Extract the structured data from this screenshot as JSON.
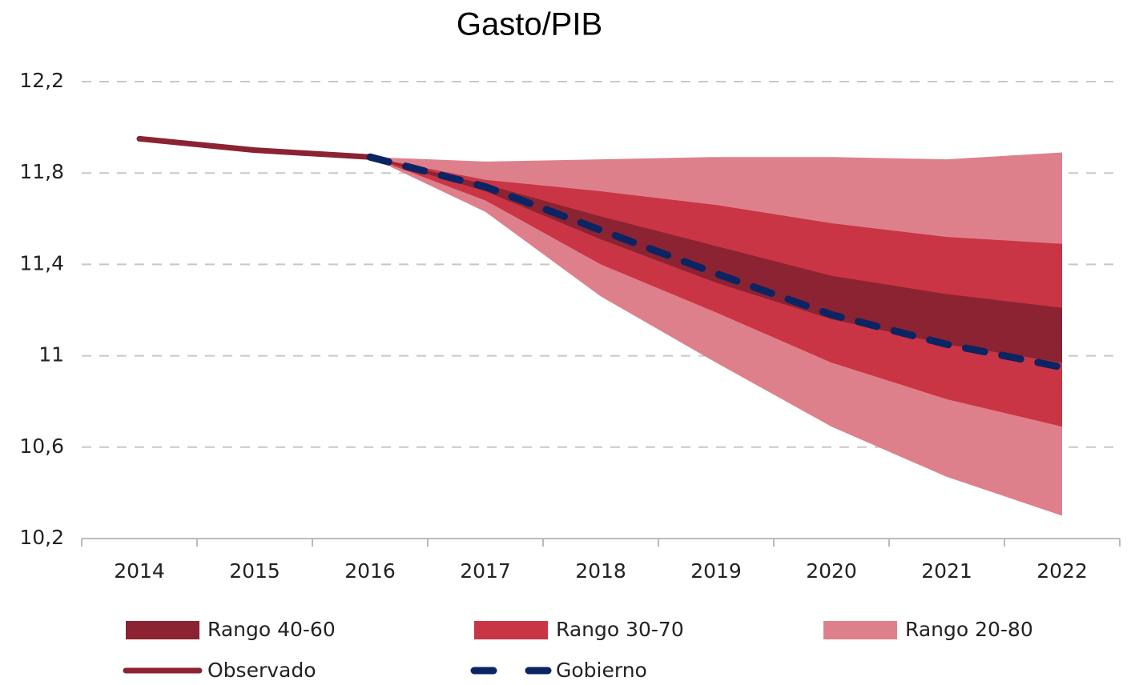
{
  "chart_data": {
    "type": "fan",
    "title": "Gasto/PIB",
    "categories": [
      "2014",
      "2015",
      "2016",
      "2017",
      "2018",
      "2019",
      "2020",
      "2021",
      "2022"
    ],
    "ylim": [
      10.2,
      12.2
    ],
    "yticks": [
      {
        "value": 10.2,
        "label": "10,2"
      },
      {
        "value": 10.6,
        "label": "10,6"
      },
      11,
      {
        "value": 11.4,
        "label": "11,4"
      },
      {
        "value": 11.8,
        "label": "11,8"
      },
      {
        "value": 12.2,
        "label": "12,2"
      }
    ],
    "grid": true,
    "bands": [
      {
        "name": "Rango 40-60",
        "color": "#8b2332",
        "low": [
          null,
          null,
          11.87,
          11.72,
          11.51,
          11.32,
          11.16,
          11.05,
          10.97
        ],
        "high": [
          null,
          null,
          11.87,
          11.75,
          11.61,
          11.48,
          11.35,
          11.27,
          11.21
        ]
      },
      {
        "name": "Rango 30-70",
        "color": "#c93545",
        "low": [
          null,
          null,
          11.87,
          11.68,
          11.4,
          11.19,
          10.97,
          10.81,
          10.69
        ],
        "high": [
          null,
          null,
          11.87,
          11.77,
          11.72,
          11.66,
          11.58,
          11.52,
          11.49
        ]
      },
      {
        "name": "Rango 20-80",
        "color": "#de808b",
        "low": [
          null,
          null,
          11.87,
          11.63,
          11.26,
          10.97,
          10.69,
          10.47,
          10.3
        ],
        "high": [
          null,
          null,
          11.87,
          11.85,
          11.86,
          11.87,
          11.87,
          11.86,
          11.89
        ]
      }
    ],
    "series": [
      {
        "name": "Observado",
        "color": "#8b2332",
        "dashed": false,
        "values": [
          11.95,
          11.9,
          11.87,
          null,
          null,
          null,
          null,
          null,
          null
        ]
      },
      {
        "name": "Gobierno",
        "color": "#0d2463",
        "dashed": true,
        "values": [
          null,
          null,
          11.87,
          11.74,
          11.55,
          11.36,
          11.18,
          11.05,
          10.95
        ]
      }
    ]
  }
}
